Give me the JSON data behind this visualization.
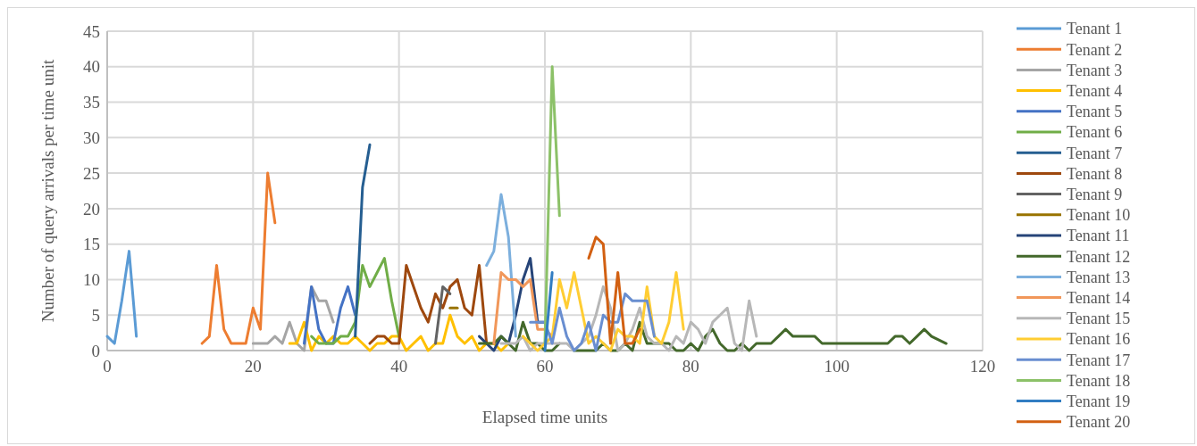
{
  "chart_data": {
    "type": "line",
    "xlabel": "Elapsed time units",
    "ylabel": "Number of query arrivals per time unit",
    "xlim": [
      0,
      120
    ],
    "xticks": [
      0,
      20,
      40,
      60,
      80,
      100,
      120
    ],
    "ylim": [
      0,
      45
    ],
    "yticks": [
      0,
      5,
      10,
      15,
      20,
      25,
      30,
      35,
      40,
      45
    ],
    "grid": true,
    "legend": "right",
    "series": [
      {
        "name": "Tenant 1",
        "color": "#5b9bd5",
        "x": [
          0,
          1,
          2,
          3,
          4
        ],
        "values": [
          2,
          1,
          7,
          14,
          2
        ]
      },
      {
        "name": "Tenant 2",
        "color": "#ed7d31",
        "x": [
          13,
          14,
          15,
          16,
          17,
          18,
          19,
          20,
          21,
          22,
          23
        ],
        "values": [
          1,
          2,
          12,
          3,
          1,
          1,
          1,
          6,
          3,
          25,
          18
        ]
      },
      {
        "name": "Tenant 3",
        "color": "#a5a5a5",
        "x": [
          20,
          21,
          22,
          23,
          24,
          25,
          26,
          27,
          28,
          29,
          30,
          31
        ],
        "values": [
          1,
          1,
          1,
          2,
          1,
          4,
          1,
          0,
          9,
          7,
          7,
          4
        ]
      },
      {
        "name": "Tenant 4",
        "color": "#ffc000",
        "x": [
          25,
          26,
          27,
          28,
          29,
          30,
          31,
          32,
          33,
          34,
          35,
          36,
          37,
          38,
          39,
          40,
          41,
          42,
          43,
          44,
          45,
          46,
          47,
          48,
          49,
          50,
          51,
          52,
          53,
          54,
          55
        ],
        "values": [
          1,
          1,
          4,
          0,
          2,
          1,
          2,
          1,
          1,
          2,
          1,
          0,
          1,
          1,
          2,
          2,
          0,
          1,
          2,
          0,
          1,
          1,
          5,
          2,
          1,
          2,
          0,
          1,
          1,
          0,
          1
        ]
      },
      {
        "name": "Tenant 5",
        "color": "#4472c4",
        "x": [
          27,
          28,
          29,
          30,
          31,
          32,
          33,
          34
        ],
        "values": [
          1,
          9,
          3,
          1,
          1,
          6,
          9,
          5
        ]
      },
      {
        "name": "Tenant 6",
        "color": "#70ad47",
        "x": [
          28,
          29,
          30,
          31,
          32,
          33,
          34,
          35,
          36,
          37,
          38,
          39,
          40
        ],
        "values": [
          2,
          1,
          1,
          1,
          2,
          2,
          4,
          12,
          9,
          11,
          13,
          7,
          2
        ]
      },
      {
        "name": "Tenant 7",
        "color": "#255e91",
        "x": [
          34,
          35,
          36
        ],
        "values": [
          2,
          23,
          29
        ]
      },
      {
        "name": "Tenant 8",
        "color": "#9e480e",
        "x": [
          36,
          37,
          38,
          39,
          40,
          41,
          42,
          43,
          44,
          45,
          46,
          47,
          48,
          49,
          50,
          51,
          52
        ],
        "values": [
          1,
          2,
          2,
          1,
          1,
          12,
          9,
          6,
          4,
          8,
          6,
          9,
          10,
          6,
          5,
          12,
          1
        ]
      },
      {
        "name": "Tenant 9",
        "color": "#636363",
        "x": [
          45,
          46,
          47
        ],
        "values": [
          1,
          9,
          8
        ]
      },
      {
        "name": "Tenant 10",
        "color": "#997300",
        "x": [
          47,
          48
        ],
        "values": [
          6,
          6
        ]
      },
      {
        "name": "Tenant 11",
        "color": "#264478",
        "x": [
          51,
          52,
          53,
          54,
          55,
          56,
          57,
          58,
          59,
          60
        ],
        "values": [
          2,
          1,
          0,
          2,
          1,
          5,
          10,
          13,
          4,
          4
        ]
      },
      {
        "name": "Tenant 12",
        "color": "#43682b",
        "x": [
          51,
          52,
          53,
          54,
          55,
          56,
          57,
          58,
          59,
          60,
          61,
          62,
          63,
          64,
          65,
          66,
          67,
          68,
          69,
          70,
          71,
          72,
          73,
          74,
          75,
          76,
          77,
          78,
          79,
          80,
          81,
          82,
          83,
          84,
          85,
          86,
          87,
          88,
          89,
          90,
          91,
          92,
          93,
          94,
          95,
          96,
          97,
          98,
          99,
          100,
          101,
          102,
          103,
          104,
          105,
          106,
          107,
          108,
          109,
          110,
          111,
          112,
          113,
          114,
          115
        ],
        "values": [
          1,
          1,
          1,
          2,
          1,
          0,
          4,
          1,
          1,
          0,
          0,
          1,
          null,
          0,
          0,
          0,
          0,
          1,
          0,
          0,
          1,
          0,
          4,
          1,
          1,
          1,
          1,
          0,
          0,
          1,
          0,
          2,
          3,
          1,
          0,
          0,
          1,
          0,
          1,
          1,
          1,
          2,
          3,
          2,
          2,
          2,
          2,
          1,
          1,
          1,
          1,
          1,
          1,
          1,
          1,
          1,
          1,
          2,
          2,
          1,
          2,
          3,
          2,
          1.5,
          1
        ]
      },
      {
        "name": "Tenant 13",
        "color": "#7cafdd",
        "x": [
          52,
          53,
          54,
          55,
          56
        ],
        "values": [
          12,
          14,
          22,
          16,
          2
        ]
      },
      {
        "name": "Tenant 14",
        "color": "#f1975a",
        "x": [
          53,
          54,
          55,
          56,
          57,
          58,
          59,
          60,
          61
        ],
        "values": [
          1,
          11,
          10,
          10,
          9,
          10,
          3,
          3,
          2
        ]
      },
      {
        "name": "Tenant 15",
        "color": "#b7b7b7",
        "x": [
          54,
          55,
          56,
          57,
          58,
          59,
          60,
          61,
          62,
          63,
          64,
          65,
          66,
          67,
          68,
          69,
          70,
          71,
          72,
          73,
          74,
          75,
          76,
          77,
          78,
          79,
          80,
          81,
          82,
          83,
          84,
          85,
          86,
          87,
          88,
          89
        ],
        "values": [
          1,
          1,
          1,
          2,
          0,
          1,
          1,
          1,
          1,
          1,
          0,
          1,
          2,
          5,
          9,
          6,
          0,
          1,
          3,
          6,
          2,
          1,
          1,
          0,
          2,
          1,
          4,
          3,
          1,
          4,
          5,
          6,
          1,
          0,
          7,
          2
        ]
      },
      {
        "name": "Tenant 16",
        "color": "#ffcd33",
        "x": [
          57,
          58,
          59,
          60,
          61,
          62,
          63,
          64,
          65,
          66,
          67,
          68,
          69,
          70,
          71,
          72,
          73,
          74,
          75,
          76,
          77,
          78,
          79
        ],
        "values": [
          2,
          1,
          0,
          1,
          2,
          10,
          6,
          11,
          6,
          1,
          2,
          1,
          0,
          3,
          2,
          2,
          1,
          9,
          2,
          1,
          4,
          11,
          3
        ]
      },
      {
        "name": "Tenant 17",
        "color": "#698ed0",
        "x": [
          58,
          59,
          60,
          61,
          62,
          63,
          64,
          65,
          66,
          67,
          68,
          69,
          70,
          71,
          72,
          73,
          74,
          75
        ],
        "values": [
          4,
          4,
          4,
          1,
          6,
          2,
          0,
          1,
          4,
          0,
          5,
          4,
          4,
          8,
          7,
          7,
          7,
          2
        ]
      },
      {
        "name": "Tenant 18",
        "color": "#8cc168",
        "x": [
          60,
          61,
          62
        ],
        "values": [
          1,
          40,
          19
        ]
      },
      {
        "name": "Tenant 19",
        "color": "#327dc2",
        "x": [
          60,
          61
        ],
        "values": [
          0,
          11
        ]
      },
      {
        "name": "Tenant 20",
        "color": "#d26012",
        "x": [
          66,
          67,
          68,
          69,
          70,
          71,
          72,
          73
        ],
        "values": [
          13,
          16,
          15,
          1,
          11,
          1,
          1,
          3
        ]
      }
    ]
  }
}
